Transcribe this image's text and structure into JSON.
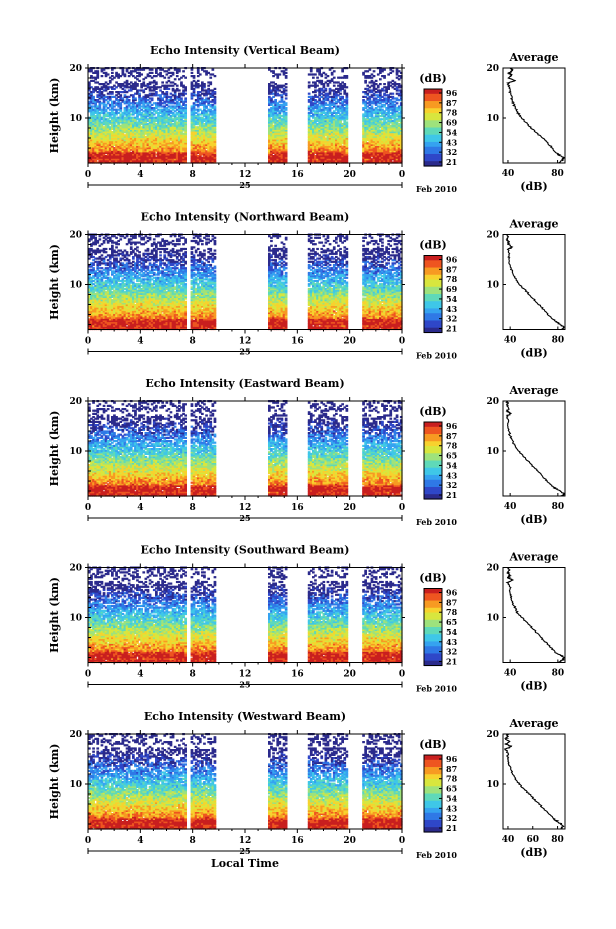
{
  "figure": {
    "xlabel_bottom": "Local Time",
    "colormap": [
      "#2b2a8c",
      "#2f47c8",
      "#2f79e6",
      "#35a3f0",
      "#3fc7e8",
      "#5fd9b9",
      "#9ee27c",
      "#d8e63e",
      "#f7d22e",
      "#f79a22",
      "#ee5520",
      "#c91f1f"
    ]
  },
  "chart_data": [
    {
      "type": "heatmap",
      "title": "Echo Intensity (Vertical Beam)",
      "ylabel": "Height (km)",
      "x_ticks": [
        "0",
        "4",
        "8",
        "12",
        "16",
        "20",
        "0"
      ],
      "xlim": [
        0,
        24
      ],
      "ylim": [
        1,
        20
      ],
      "y_ticks": [
        "20",
        "10"
      ],
      "date_label": "25",
      "date_suffix": "Feb 2010",
      "data_gaps_hours": [
        [
          7.6,
          7.8
        ],
        [
          9.7,
          13.8
        ],
        [
          15.2,
          16.8
        ],
        [
          19.8,
          21.0
        ]
      ],
      "colorbar": {
        "label": "(dB)",
        "ticks": [
          "96",
          "87",
          "78",
          "69",
          "54",
          "43",
          "32",
          "21"
        ]
      },
      "profile": {
        "title": "Average",
        "xlabel": "(dB)",
        "x_ticks": [
          "40",
          "80"
        ],
        "xlim": [
          36,
          86
        ],
        "y_ticks": [
          "20",
          "10"
        ],
        "height_km": [
          1,
          1.5,
          2,
          2.5,
          3,
          4,
          5,
          6,
          7,
          8,
          9,
          10,
          11,
          12,
          13,
          14,
          15,
          16,
          17,
          17.5,
          18,
          18.5,
          19,
          19.5,
          20
        ],
        "db": [
          80,
          84,
          85,
          82,
          79,
          76,
          72,
          68,
          63,
          59,
          55,
          51,
          48,
          46,
          44,
          43,
          42,
          41,
          40,
          46,
          40,
          43,
          41,
          44,
          42
        ]
      }
    },
    {
      "type": "heatmap",
      "title": "Echo Intensity (Northward Beam)",
      "ylabel": "Height (km)",
      "x_ticks": [
        "0",
        "4",
        "8",
        "12",
        "16",
        "20",
        "0"
      ],
      "xlim": [
        0,
        24
      ],
      "ylim": [
        1,
        20
      ],
      "y_ticks": [
        "20",
        "10"
      ],
      "date_label": "25",
      "date_suffix": "Feb 2010",
      "data_gaps_hours": [
        [
          7.6,
          7.8
        ],
        [
          9.7,
          13.8
        ],
        [
          15.2,
          16.8
        ],
        [
          19.8,
          21.0
        ]
      ],
      "colorbar": {
        "label": "(dB)",
        "ticks": [
          "96",
          "87",
          "78",
          "69",
          "54",
          "43",
          "32",
          "21"
        ]
      },
      "profile": {
        "title": "Average",
        "xlabel": "(dB)",
        "x_ticks": [
          "40",
          "80"
        ],
        "xlim": [
          34,
          86
        ],
        "y_ticks": [
          "20",
          "10"
        ],
        "height_km": [
          1,
          1.5,
          2,
          2.5,
          3,
          4,
          5,
          6,
          7,
          8,
          9,
          10,
          11,
          12,
          13,
          14,
          15,
          16,
          17,
          17.5,
          18,
          18.5,
          19,
          19.5,
          20
        ],
        "db": [
          84,
          85,
          82,
          79,
          76,
          72,
          68,
          64,
          60,
          56,
          52,
          48,
          45,
          43,
          41,
          40,
          39,
          39,
          38,
          42,
          38,
          39,
          37,
          38,
          37
        ]
      }
    },
    {
      "type": "heatmap",
      "title": "Echo Intensity (Eastward Beam)",
      "ylabel": "Height (km)",
      "x_ticks": [
        "0",
        "4",
        "8",
        "12",
        "16",
        "20",
        "0"
      ],
      "xlim": [
        0,
        24
      ],
      "ylim": [
        1,
        20
      ],
      "y_ticks": [
        "20",
        "10"
      ],
      "date_label": "25",
      "date_suffix": "Feb 2010",
      "data_gaps_hours": [
        [
          7.6,
          7.8
        ],
        [
          9.7,
          13.8
        ],
        [
          15.2,
          16.8
        ],
        [
          19.8,
          21.0
        ]
      ],
      "colorbar": {
        "label": "(dB)",
        "ticks": [
          "96",
          "87",
          "78",
          "65",
          "54",
          "43",
          "32",
          "21"
        ]
      },
      "profile": {
        "title": "Average",
        "xlabel": "(dB)",
        "x_ticks": [
          "40",
          "80"
        ],
        "xlim": [
          34,
          86
        ],
        "y_ticks": [
          "20",
          "10"
        ],
        "height_km": [
          1,
          1.5,
          2,
          2.5,
          3,
          4,
          5,
          6,
          7,
          8,
          9,
          10,
          11,
          12,
          13,
          14,
          15,
          16,
          17,
          17.5,
          18,
          18.5,
          19,
          19.5,
          20
        ],
        "db": [
          84,
          85,
          82,
          78,
          75,
          71,
          67,
          63,
          59,
          55,
          51,
          47,
          44,
          42,
          40,
          39,
          38,
          38,
          37,
          41,
          37,
          39,
          37,
          38,
          37
        ]
      }
    },
    {
      "type": "heatmap",
      "title": "Echo Intensity (Southward Beam)",
      "ylabel": "Height (km)",
      "x_ticks": [
        "0",
        "4",
        "8",
        "12",
        "16",
        "20",
        "0"
      ],
      "xlim": [
        0,
        24
      ],
      "ylim": [
        1,
        20
      ],
      "y_ticks": [
        "20",
        "10"
      ],
      "date_label": "25",
      "date_suffix": "Feb 2010",
      "data_gaps_hours": [
        [
          7.6,
          7.8
        ],
        [
          9.7,
          13.8
        ],
        [
          15.2,
          16.8
        ],
        [
          19.8,
          21.0
        ]
      ],
      "colorbar": {
        "label": "(dB)",
        "ticks": [
          "96",
          "87",
          "78",
          "65",
          "54",
          "43",
          "32",
          "21"
        ]
      },
      "profile": {
        "title": "Average",
        "xlabel": "(dB)",
        "x_ticks": [
          "40",
          "80"
        ],
        "xlim": [
          34,
          86
        ],
        "y_ticks": [
          "20",
          "10"
        ],
        "height_km": [
          1,
          1.5,
          2,
          2.5,
          3,
          4,
          5,
          6,
          7,
          8,
          9,
          10,
          11,
          12,
          13,
          14,
          15,
          16,
          17,
          17.5,
          18,
          18.5,
          19,
          19.5,
          20
        ],
        "db": [
          80,
          84,
          85,
          82,
          78,
          74,
          70,
          66,
          62,
          58,
          54,
          50,
          46,
          44,
          42,
          41,
          40,
          40,
          38,
          42,
          38,
          40,
          38,
          39,
          38
        ]
      }
    },
    {
      "type": "heatmap",
      "title": "Echo Intensity (Westward Beam)",
      "ylabel": "Height (km)",
      "x_ticks": [
        "0",
        "4",
        "8",
        "12",
        "16",
        "20",
        "0"
      ],
      "xlim": [
        0,
        24
      ],
      "ylim": [
        1,
        20
      ],
      "y_ticks": [
        "20",
        "10"
      ],
      "date_label": "25",
      "date_suffix": "Feb 2010",
      "data_gaps_hours": [
        [
          7.6,
          7.8
        ],
        [
          9.7,
          13.8
        ],
        [
          15.2,
          16.8
        ],
        [
          19.8,
          21.0
        ]
      ],
      "colorbar": {
        "label": "(dB)",
        "ticks": [
          "96",
          "87",
          "78",
          "65",
          "54",
          "43",
          "32",
          "21"
        ]
      },
      "profile": {
        "title": "Average",
        "xlabel": "(dB)",
        "x_ticks": [
          "40",
          "60",
          "80"
        ],
        "xlim": [
          36,
          86
        ],
        "y_ticks": [
          "20",
          "10"
        ],
        "height_km": [
          1,
          1.5,
          2,
          2.5,
          3,
          4,
          5,
          6,
          7,
          8,
          9,
          10,
          11,
          12,
          13,
          14,
          15,
          16,
          17,
          17.5,
          18,
          18.5,
          19,
          19.5,
          20
        ],
        "db": [
          82,
          84,
          83,
          80,
          77,
          73,
          69,
          65,
          61,
          57,
          53,
          49,
          46,
          44,
          42,
          41,
          40,
          40,
          38,
          43,
          38,
          41,
          38,
          40,
          39
        ]
      }
    }
  ]
}
